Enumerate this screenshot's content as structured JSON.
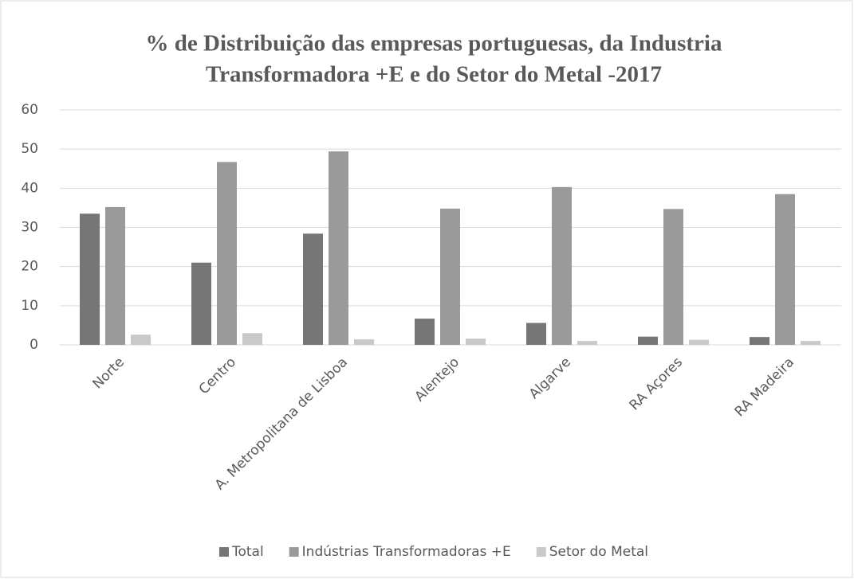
{
  "chart_data": {
    "type": "bar",
    "title": [
      "% de Distribuição das empresas portuguesas, da Industria",
      "Transformadora +E e do Setor do Metal -2017"
    ],
    "categories": [
      "Norte",
      "Centro",
      "A. Metropolitana de Lisboa",
      "Alentejo",
      "Algarve",
      "RA Açores",
      "RA Madeira"
    ],
    "series": [
      {
        "name": "Total",
        "color": "#767676",
        "values": [
          33.5,
          21.0,
          28.4,
          6.7,
          5.6,
          2.1,
          2.0
        ]
      },
      {
        "name": "Indústrias Transformadoras +E",
        "color": "#9a9a9a",
        "values": [
          35.2,
          46.7,
          49.4,
          34.8,
          40.3,
          34.7,
          38.5
        ]
      },
      {
        "name": "Setor do Metal",
        "color": "#c9c9c9",
        "values": [
          2.6,
          3.0,
          1.4,
          1.6,
          1.0,
          1.3,
          1.0
        ]
      }
    ],
    "ylim": [
      0,
      60
    ],
    "yticks": [
      0,
      10,
      20,
      30,
      40,
      50,
      60
    ],
    "grid": true,
    "legend": "bottom"
  }
}
